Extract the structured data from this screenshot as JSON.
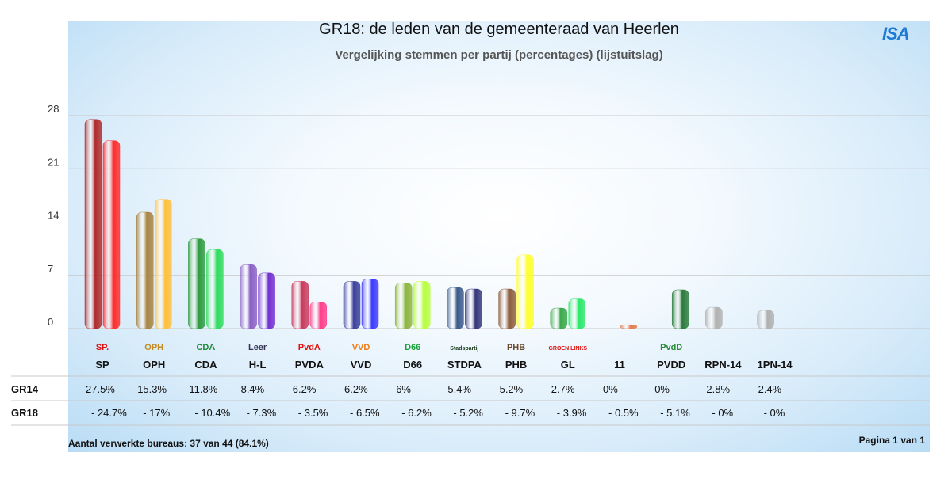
{
  "title": "GR18: de leden van de gemeenteraad van Heerlen",
  "subtitle": "Vergelijking stemmen per partij (percentages) (lijstuitslag)",
  "logo_text": "ISA",
  "footer": {
    "left": "Aantal verwerkte bureaus: 37 van 44 (84.1%)",
    "right": "Pagina 1 van 1"
  },
  "colors": {
    "grid": "#c8c8c8",
    "text": "#111111"
  },
  "chart_data": {
    "type": "bar",
    "title": "GR18: de leden van de gemeenteraad van Heerlen",
    "subtitle": "Vergelijking stemmen per partij (percentages) (lijstuitslag)",
    "ylim": [
      0,
      28
    ],
    "yticks": [
      0,
      7,
      14,
      21,
      28
    ],
    "grid": true,
    "categories": [
      "SP",
      "OPH",
      "CDA",
      "H-L",
      "PVDA",
      "VVD",
      "D66",
      "STDPA",
      "PHB",
      "GL",
      "11",
      "PVDD",
      "RPN-14",
      "1PN-14"
    ],
    "series": [
      {
        "name": "GR14",
        "values": [
          27.5,
          15.3,
          11.8,
          8.4,
          6.2,
          6.2,
          6,
          5.4,
          5.2,
          2.7,
          0,
          0,
          2.8,
          2.4
        ]
      },
      {
        "name": "GR18",
        "values": [
          24.7,
          17,
          10.4,
          7.3,
          3.5,
          6.5,
          6.2,
          5.2,
          9.7,
          3.9,
          0.5,
          5.1,
          0,
          0
        ]
      }
    ],
    "bar_colors": [
      [
        "#b02a2a",
        "#ff2a2a"
      ],
      [
        "#a88442",
        "#ffbf3a"
      ],
      [
        "#2f9a3f",
        "#2cdc5a"
      ],
      [
        "#8a5fc4",
        "#7430d0"
      ],
      [
        "#c83a5c",
        "#ff3d8a"
      ],
      [
        "#3a3f9c",
        "#3a3aff"
      ],
      [
        "#8ab53a",
        "#b6ff3a"
      ],
      [
        "#3a5a8c",
        "#33367a"
      ],
      [
        "#8c5a3a",
        "#ffff2a"
      ],
      [
        "#3aa84a",
        "#2ae86a"
      ],
      [
        "#d07040",
        "#e07a4a"
      ],
      [
        "#2a7a3a",
        "#2a7a3a"
      ],
      [
        "#b0b0b0",
        "#b0b0b0"
      ],
      [
        "#b0b0b0",
        "#b0b0b0"
      ]
    ],
    "party_logos": [
      "SP.",
      "OPH",
      "CDA",
      "Leer",
      "PvdA",
      "VVD",
      "D66",
      "Stadspartij",
      "PHB",
      "GROEN LINKS",
      "",
      "PvdD",
      "",
      ""
    ],
    "logo_colors": [
      "#e01010",
      "#c08a20",
      "#1a8a3a",
      "#335",
      "#e01010",
      "#f07a10",
      "#1aa03a",
      "#204020",
      "#6a4a2a",
      "#e01010",
      "",
      "#2a8a3a",
      "",
      ""
    ],
    "table": {
      "row_labels": [
        "GR14",
        "GR18"
      ],
      "gr14": [
        "27.5%",
        "15.3%",
        "11.8%",
        "8.4%-",
        "6.2%-",
        "6.2%-",
        "6%  -",
        "5.4%-",
        "5.2%-",
        "2.7%-",
        "0%  -",
        "0%  -",
        "2.8%-",
        "2.4%-"
      ],
      "gr18": [
        "-  24.7%",
        "-  17%",
        "-  10.4%",
        "-  7.3%",
        "-  3.5%",
        "-  6.5%",
        "-  6.2%",
        "-  5.2%",
        "-  9.7%",
        "-  3.9%",
        "-  0.5%",
        "-  5.1%",
        "-  0%",
        "-  0%"
      ]
    }
  }
}
